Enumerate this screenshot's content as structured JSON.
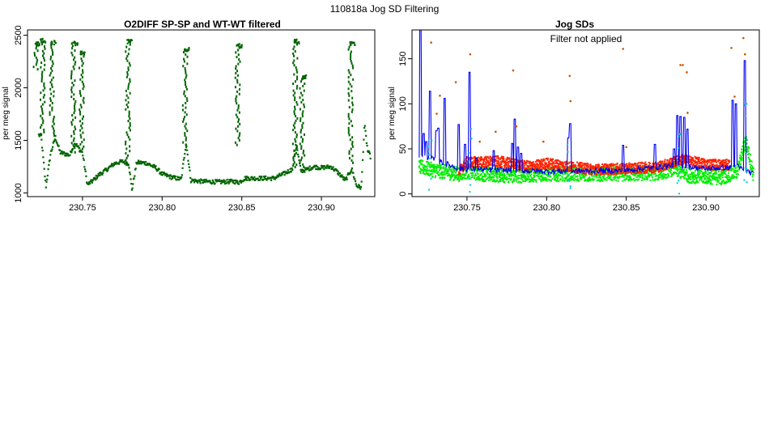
{
  "figure": {
    "suptitle": "110818a   Jog SD Filtering"
  },
  "colors": {
    "dark_green": "#006400",
    "bright_green": "#00ee00",
    "red": "#ff2200",
    "blue": "#0000ee",
    "cyan": "#00cccc",
    "orange": "#cc5500"
  },
  "chart_data": [
    {
      "type": "scatter",
      "title": "O2DIFF SP-SP and WT-WT filtered",
      "xlabel": "",
      "ylabel": "per meg signal",
      "xlim": [
        230.7155,
        230.9335
      ],
      "ylim": [
        965,
        2550
      ],
      "xticks": [
        "230.75",
        "230.80",
        "230.85",
        "230.90"
      ],
      "xtick_values": [
        230.75,
        230.8,
        230.85,
        230.9
      ],
      "yticks": [
        "1000",
        "1500",
        "2000",
        "2500"
      ],
      "ytick_values": [
        1000,
        1500,
        2000,
        2500
      ],
      "grid": false,
      "series": [
        {
          "color": "#006400",
          "style": "dots",
          "note_of_shape": "baseline with high-value calibration spikes",
          "baseline": [
            [
              230.7225,
              1550
            ],
            [
              230.724,
              1540
            ],
            [
              230.727,
              1060
            ],
            [
              230.73,
              1380
            ],
            [
              230.733,
              1530
            ],
            [
              230.736,
              1385
            ],
            [
              230.742,
              1360
            ],
            [
              230.745,
              1480
            ],
            [
              230.75,
              1380
            ],
            [
              230.753,
              1080
            ],
            [
              230.756,
              1110
            ],
            [
              230.76,
              1170
            ],
            [
              230.765,
              1220
            ],
            [
              230.77,
              1280
            ],
            [
              230.775,
              1300
            ],
            [
              230.779,
              1280
            ],
            [
              230.781,
              1030
            ],
            [
              230.784,
              1290
            ],
            [
              230.79,
              1285
            ],
            [
              230.796,
              1240
            ],
            [
              230.8,
              1180
            ],
            [
              230.806,
              1150
            ],
            [
              230.812,
              1130
            ],
            [
              230.815,
              1480
            ],
            [
              230.818,
              1120
            ],
            [
              230.825,
              1110
            ],
            [
              230.835,
              1105
            ],
            [
              230.845,
              1110
            ],
            [
              230.848,
              1100
            ],
            [
              230.852,
              1140
            ],
            [
              230.86,
              1140
            ],
            [
              230.87,
              1140
            ],
            [
              230.876,
              1180
            ],
            [
              230.882,
              1230
            ],
            [
              230.884,
              1480
            ],
            [
              230.887,
              1210
            ],
            [
              230.89,
              1220
            ],
            [
              230.895,
              1250
            ],
            [
              230.9,
              1240
            ],
            [
              230.906,
              1250
            ],
            [
              230.91,
              1200
            ],
            [
              230.915,
              1120
            ],
            [
              230.919,
              1230
            ],
            [
              230.922,
              1070
            ],
            [
              230.925,
              1050
            ],
            [
              230.927,
              1650
            ],
            [
              230.929,
              1400
            ],
            [
              230.931,
              1340
            ]
          ],
          "spikes": [
            [
              230.7205,
              2440,
              2180
            ],
            [
              230.725,
              2470,
              1560
            ],
            [
              230.731,
              2450,
              1550
            ],
            [
              230.7445,
              2440,
              1390
            ],
            [
              230.7495,
              2350,
              1400
            ],
            [
              230.7785,
              2460,
              1270
            ],
            [
              230.8145,
              2380,
              1440
            ],
            [
              230.8475,
              2420,
              1460
            ],
            [
              230.8835,
              2460,
              1250
            ],
            [
              230.888,
              2120,
              1250
            ],
            [
              230.9185,
              2440,
              1290
            ]
          ]
        }
      ]
    },
    {
      "type": "scatter",
      "title": "Jog SDs",
      "annotation": "Filter not applied",
      "xlabel": "",
      "ylabel": "per meg signal",
      "xlim": [
        230.7155,
        230.9335
      ],
      "ylim": [
        -3,
        182
      ],
      "xticks": [
        "230.75",
        "230.80",
        "230.85",
        "230.90"
      ],
      "xtick_values": [
        230.75,
        230.8,
        230.85,
        230.9
      ],
      "yticks": [
        "0",
        "50",
        "100",
        "150"
      ],
      "ytick_values": [
        0,
        50,
        100,
        150
      ],
      "grid": false,
      "series": [
        {
          "color": "#00ee00",
          "style": "dense dots",
          "band_center": [
            [
              230.72,
              30
            ],
            [
              230.73,
              26
            ],
            [
              230.745,
              22
            ],
            [
              230.75,
              25
            ],
            [
              230.76,
              22
            ],
            [
              230.78,
              20
            ],
            [
              230.8,
              22
            ],
            [
              230.82,
              22
            ],
            [
              230.85,
              22
            ],
            [
              230.87,
              23
            ],
            [
              230.88,
              28
            ],
            [
              230.89,
              20
            ],
            [
              230.91,
              18
            ],
            [
              230.92,
              25
            ],
            [
              230.925,
              60
            ],
            [
              230.93,
              20
            ]
          ]
        },
        {
          "color": "#ff2200",
          "style": "dense dots",
          "band_center": [
            [
              230.745,
              25
            ],
            [
              230.75,
              35
            ],
            [
              230.77,
              36
            ],
            [
              230.79,
              30
            ],
            [
              230.8,
              34
            ],
            [
              230.815,
              30
            ],
            [
              230.83,
              27
            ],
            [
              230.85,
              28
            ],
            [
              230.87,
              30
            ],
            [
              230.885,
              38
            ],
            [
              230.9,
              33
            ],
            [
              230.915,
              32
            ]
          ]
        },
        {
          "color": "#0000ee",
          "style": "step line",
          "baseline": [
            [
              230.72,
              42
            ],
            [
              230.73,
              38
            ],
            [
              230.745,
              28
            ],
            [
              230.76,
              27
            ],
            [
              230.8,
              25
            ],
            [
              230.85,
              26
            ],
            [
              230.88,
              32
            ],
            [
              230.9,
              28
            ],
            [
              230.92,
              30
            ],
            [
              230.93,
              22
            ]
          ],
          "spikes": [
            [
              230.721,
              182
            ],
            [
              230.723,
              67
            ],
            [
              230.7245,
              58
            ],
            [
              230.727,
              114
            ],
            [
              230.731,
              70
            ],
            [
              230.732,
              73
            ],
            [
              230.736,
              106
            ],
            [
              230.745,
              77
            ],
            [
              230.749,
              55
            ],
            [
              230.7515,
              135
            ],
            [
              230.756,
              40
            ],
            [
              230.767,
              48
            ],
            [
              230.7785,
              56
            ],
            [
              230.78,
              83
            ],
            [
              230.782,
              52
            ],
            [
              230.784,
              45
            ],
            [
              230.8135,
              62
            ],
            [
              230.815,
              78
            ],
            [
              230.848,
              54
            ],
            [
              230.868,
              55
            ],
            [
              230.88,
              50
            ],
            [
              230.882,
              87
            ],
            [
              230.884,
              86
            ],
            [
              230.8865,
              85
            ],
            [
              230.8885,
              72
            ],
            [
              230.917,
              104
            ],
            [
              230.919,
              100
            ],
            [
              230.9245,
              148
            ]
          ]
        },
        {
          "color": "#00cccc",
          "style": "dots",
          "spikes": [
            [
              230.727,
              65
            ],
            [
              230.752,
              100
            ],
            [
              230.814,
              55
            ],
            [
              230.883,
              75
            ],
            [
              230.925,
              100
            ]
          ]
        },
        {
          "color": "#cc5500",
          "style": "sparse dots",
          "points": [
            [
              230.7275,
              168
            ],
            [
              230.733,
              109
            ],
            [
              230.731,
              89
            ],
            [
              230.743,
              124
            ],
            [
              230.752,
              155
            ],
            [
              230.758,
              58
            ],
            [
              230.768,
              69
            ],
            [
              230.779,
              137
            ],
            [
              230.781,
              75
            ],
            [
              230.798,
              58
            ],
            [
              230.8145,
              131
            ],
            [
              230.815,
              103
            ],
            [
              230.848,
              161
            ],
            [
              230.85,
              52
            ],
            [
              230.884,
              143
            ],
            [
              230.8855,
              143
            ],
            [
              230.888,
              135
            ],
            [
              230.8885,
              90
            ],
            [
              230.916,
              162
            ],
            [
              230.9235,
              173
            ],
            [
              230.9245,
              155
            ],
            [
              230.918,
              108
            ]
          ]
        }
      ]
    }
  ]
}
